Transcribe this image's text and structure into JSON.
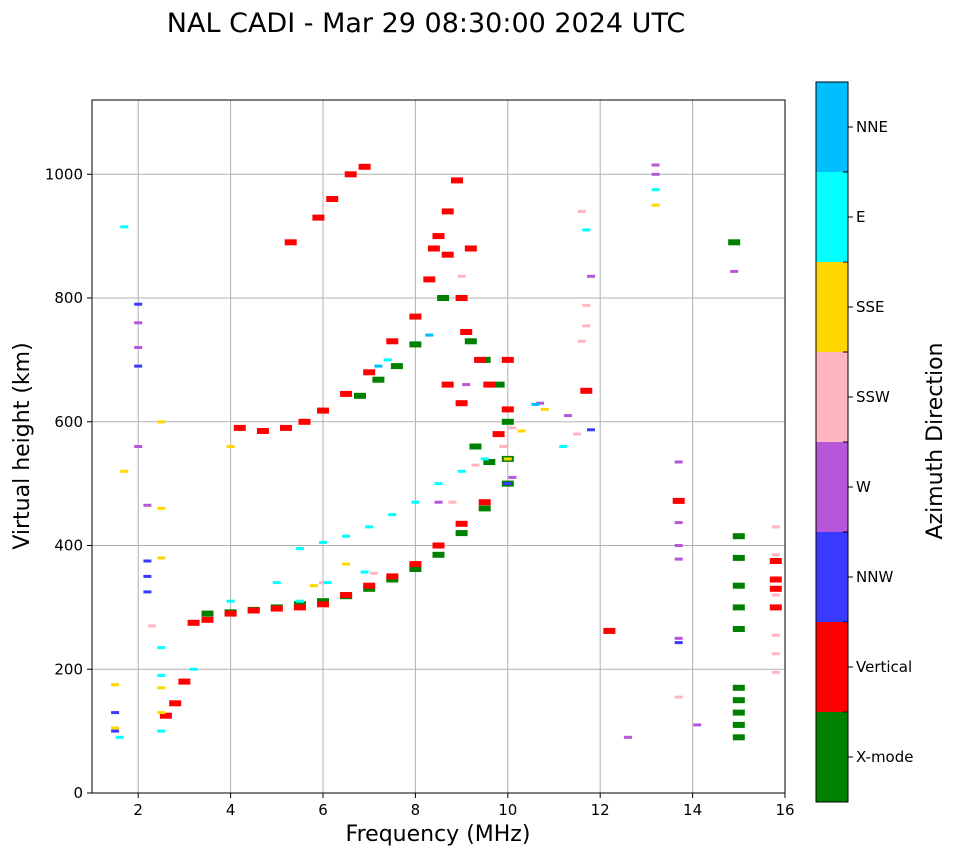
{
  "chart_data": {
    "type": "scatter",
    "title": "NAL CADI - Mar 29 08:30:00 2024 UTC",
    "xlabel": "Frequency (MHz)",
    "ylabel": "Virtual height (km)",
    "xlim": [
      1,
      16
    ],
    "ylim": [
      0,
      1120
    ],
    "xticks": [
      2,
      4,
      6,
      8,
      10,
      12,
      14,
      16
    ],
    "yticks": [
      0,
      200,
      400,
      600,
      800,
      1000
    ],
    "grid": true,
    "colorbar": {
      "title": "Azimuth Direction",
      "categories": [
        {
          "name": "X-mode",
          "color": "#008000"
        },
        {
          "name": "Vertical",
          "color": "#ff0000"
        },
        {
          "name": "NNW",
          "color": "#3a3aff"
        },
        {
          "name": "W",
          "color": "#b557d8"
        },
        {
          "name": "SSW",
          "color": "#ffb6c1"
        },
        {
          "name": "SSE",
          "color": "#ffd700"
        },
        {
          "name": "E",
          "color": "#00ffff"
        },
        {
          "name": "NNE",
          "color": "#00bfff"
        }
      ]
    },
    "series": [
      {
        "name": "X-mode",
        "points": [
          [
            3.5,
            290
          ],
          [
            4,
            292
          ],
          [
            4.5,
            296
          ],
          [
            5,
            300
          ],
          [
            5.5,
            305
          ],
          [
            6,
            310
          ],
          [
            6.5,
            318
          ],
          [
            7,
            330
          ],
          [
            7.5,
            345
          ],
          [
            8,
            362
          ],
          [
            8.5,
            385
          ],
          [
            9,
            420
          ],
          [
            9.5,
            460
          ],
          [
            10,
            500
          ],
          [
            6.8,
            642
          ],
          [
            7.2,
            668
          ],
          [
            7.6,
            690
          ],
          [
            8.0,
            725
          ],
          [
            8.6,
            800
          ],
          [
            9.2,
            730
          ],
          [
            9.5,
            700
          ],
          [
            9.8,
            660
          ],
          [
            10,
            600
          ],
          [
            9.3,
            560
          ],
          [
            9.6,
            535
          ],
          [
            10,
            540
          ],
          [
            14.9,
            890
          ],
          [
            15,
            90
          ],
          [
            15,
            110
          ],
          [
            15,
            130
          ],
          [
            15,
            150
          ],
          [
            15,
            170
          ],
          [
            15,
            265
          ],
          [
            15,
            300
          ],
          [
            15,
            335
          ],
          [
            15,
            380
          ],
          [
            15,
            415
          ]
        ]
      },
      {
        "name": "Vertical",
        "points": [
          [
            2.6,
            125
          ],
          [
            2.8,
            145
          ],
          [
            3.0,
            180
          ],
          [
            3.2,
            275
          ],
          [
            3.5,
            280
          ],
          [
            4,
            290
          ],
          [
            4.5,
            295
          ],
          [
            5,
            298
          ],
          [
            5.5,
            300
          ],
          [
            6,
            305
          ],
          [
            6.5,
            320
          ],
          [
            7,
            335
          ],
          [
            7.5,
            350
          ],
          [
            8,
            370
          ],
          [
            8.5,
            400
          ],
          [
            9,
            435
          ],
          [
            9.5,
            470
          ],
          [
            4.2,
            590
          ],
          [
            4.7,
            585
          ],
          [
            5.2,
            590
          ],
          [
            5.6,
            600
          ],
          [
            6.0,
            618
          ],
          [
            6.5,
            645
          ],
          [
            7.0,
            680
          ],
          [
            7.5,
            730
          ],
          [
            8.0,
            770
          ],
          [
            8.3,
            830
          ],
          [
            8.4,
            880
          ],
          [
            8.7,
            940
          ],
          [
            8.9,
            990
          ],
          [
            6.2,
            960
          ],
          [
            6.6,
            1000
          ],
          [
            6.9,
            1012
          ],
          [
            5.3,
            890
          ],
          [
            5.9,
            930
          ],
          [
            8.5,
            900
          ],
          [
            8.7,
            870
          ],
          [
            9.2,
            880
          ],
          [
            9.0,
            800
          ],
          [
            9.1,
            745
          ],
          [
            9.4,
            700
          ],
          [
            8.7,
            660
          ],
          [
            9.0,
            630
          ],
          [
            9.6,
            660
          ],
          [
            10.0,
            700
          ],
          [
            10.0,
            620
          ],
          [
            9.8,
            580
          ],
          [
            12.2,
            262
          ],
          [
            11.7,
            650
          ],
          [
            15.8,
            300
          ],
          [
            15.8,
            330
          ],
          [
            15.8,
            345
          ],
          [
            15.8,
            375
          ],
          [
            13.7,
            472
          ]
        ]
      },
      {
        "name": "NNW",
        "points": [
          [
            1.5,
            100
          ],
          [
            1.5,
            130
          ],
          [
            2.0,
            690
          ],
          [
            2.0,
            790
          ],
          [
            2.2,
            325
          ],
          [
            2.2,
            350
          ],
          [
            2.2,
            375
          ],
          [
            10.0,
            500
          ],
          [
            13.7,
            243
          ],
          [
            11.8,
            587
          ]
        ]
      },
      {
        "name": "W",
        "points": [
          [
            2.0,
            720
          ],
          [
            2.0,
            760
          ],
          [
            2.0,
            560
          ],
          [
            2.2,
            465
          ],
          [
            8.5,
            470
          ],
          [
            9.1,
            660
          ],
          [
            10.1,
            510
          ],
          [
            10.7,
            630
          ],
          [
            11.3,
            610
          ],
          [
            13.2,
            1015
          ],
          [
            13.2,
            1000
          ],
          [
            13.7,
            535
          ],
          [
            13.7,
            437
          ],
          [
            13.7,
            400
          ],
          [
            13.7,
            378
          ],
          [
            13.7,
            250
          ],
          [
            14.1,
            110
          ],
          [
            12.6,
            90
          ],
          [
            14.9,
            843
          ],
          [
            11.8,
            835
          ]
        ]
      },
      {
        "name": "SSW",
        "points": [
          [
            2.3,
            270
          ],
          [
            6.0,
            340
          ],
          [
            7.1,
            355
          ],
          [
            8.8,
            470
          ],
          [
            9.3,
            530
          ],
          [
            9.9,
            560
          ],
          [
            10.1,
            590
          ],
          [
            11.5,
            580
          ],
          [
            11.6,
            730
          ],
          [
            11.7,
            755
          ],
          [
            11.7,
            788
          ],
          [
            11.6,
            940
          ],
          [
            13.7,
            155
          ],
          [
            15.8,
            195
          ],
          [
            15.8,
            225
          ],
          [
            15.8,
            255
          ],
          [
            15.8,
            430
          ],
          [
            15.8,
            385
          ],
          [
            15.8,
            320
          ],
          [
            9.0,
            835
          ]
        ]
      },
      {
        "name": "SSE",
        "points": [
          [
            1.5,
            105
          ],
          [
            1.5,
            175
          ],
          [
            1.7,
            520
          ],
          [
            2.5,
            130
          ],
          [
            2.5,
            170
          ],
          [
            2.5,
            380
          ],
          [
            2.5,
            460
          ],
          [
            2.5,
            600
          ],
          [
            4.0,
            560
          ],
          [
            5.8,
            335
          ],
          [
            6.5,
            370
          ],
          [
            10.0,
            540
          ],
          [
            10.3,
            585
          ],
          [
            10.8,
            620
          ],
          [
            13.2,
            950
          ]
        ]
      },
      {
        "name": "E",
        "points": [
          [
            1.6,
            90
          ],
          [
            1.7,
            915
          ],
          [
            2.5,
            100
          ],
          [
            2.5,
            190
          ],
          [
            2.5,
            235
          ],
          [
            3.2,
            200
          ],
          [
            4.0,
            310
          ],
          [
            5,
            340
          ],
          [
            5.5,
            395
          ],
          [
            6,
            405
          ],
          [
            6.5,
            415
          ],
          [
            7,
            430
          ],
          [
            7.5,
            450
          ],
          [
            8,
            470
          ],
          [
            8.5,
            500
          ],
          [
            9,
            520
          ],
          [
            9.5,
            540
          ],
          [
            5.5,
            310
          ],
          [
            6.1,
            340
          ],
          [
            6.9,
            357
          ],
          [
            7.4,
            700
          ],
          [
            11.7,
            910
          ],
          [
            11.2,
            560
          ],
          [
            13.2,
            975
          ]
        ]
      },
      {
        "name": "NNE",
        "points": [
          [
            7.2,
            690
          ],
          [
            8.3,
            740
          ],
          [
            10.6,
            628
          ]
        ]
      }
    ]
  }
}
